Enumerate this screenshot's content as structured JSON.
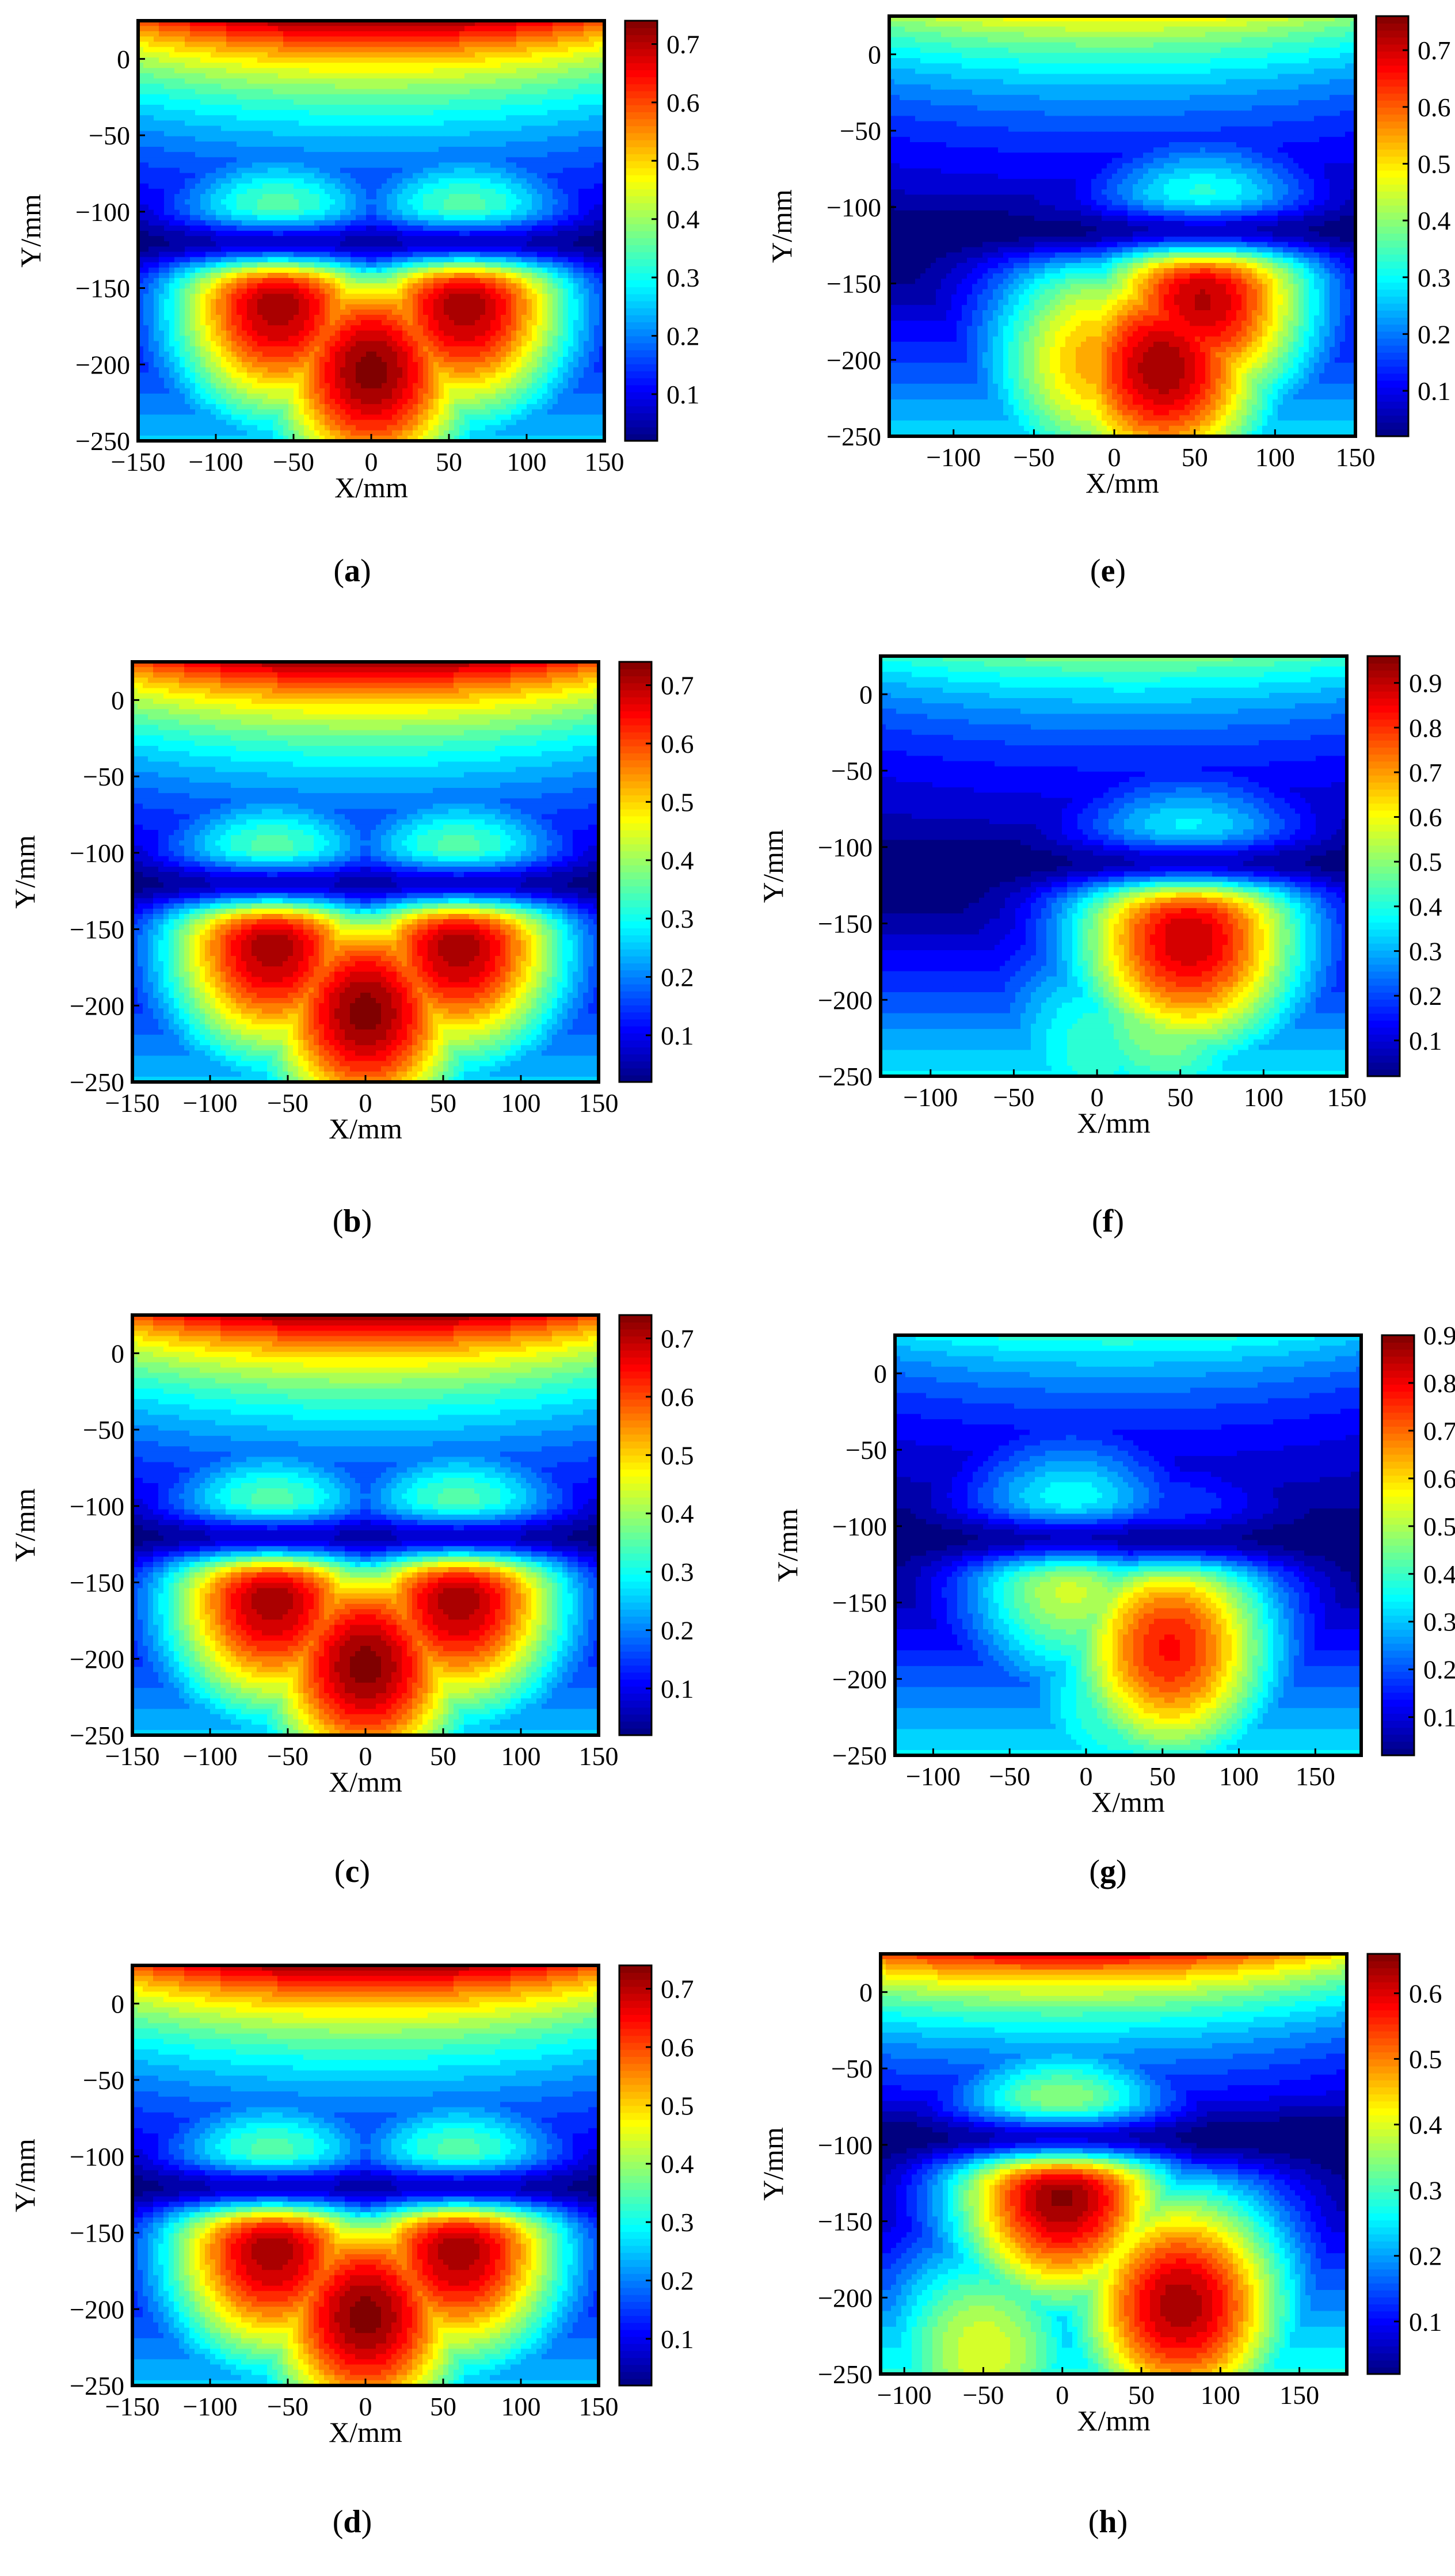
{
  "figure": {
    "panels": [
      {
        "letter": "a",
        "caption": "(a)",
        "xlabel": "X/mm",
        "ylabel": "Y/mm"
      },
      {
        "letter": "b",
        "caption": "(b)",
        "xlabel": "X/mm",
        "ylabel": "Y/mm"
      },
      {
        "letter": "c",
        "caption": "(c)",
        "xlabel": "X/mm",
        "ylabel": "Y/mm"
      },
      {
        "letter": "d",
        "caption": "(d)",
        "xlabel": "X/mm",
        "ylabel": "Y/mm"
      },
      {
        "letter": "e",
        "caption": "(e)",
        "xlabel": "X/mm",
        "ylabel": "Y/mm"
      },
      {
        "letter": "f",
        "caption": "(f)",
        "xlabel": "X/mm",
        "ylabel": "Y/mm"
      },
      {
        "letter": "g",
        "caption": "(g)",
        "xlabel": "X/mm",
        "ylabel": "Y/mm"
      },
      {
        "letter": "h",
        "caption": "(h)",
        "xlabel": "X/mm",
        "ylabel": "Y/mm"
      }
    ]
  },
  "colormap": "jet",
  "chart_data": [
    {
      "panel": "a",
      "type": "heatmap",
      "xlabel": "X/mm",
      "ylabel": "Y/mm",
      "xlim": [
        -150,
        150
      ],
      "ylim": [
        -250,
        25
      ],
      "xticks": [
        -150,
        -100,
        -50,
        0,
        50,
        100,
        150
      ],
      "xtick_labels": [
        "−150",
        "−100",
        "−50",
        "0",
        "50",
        "100",
        "150"
      ],
      "yticks": [
        0,
        -50,
        -100,
        -150,
        -200,
        -250
      ],
      "ytick_labels": [
        "0",
        "−50",
        "−100",
        "−150",
        "−200",
        "−250"
      ],
      "colorbar": {
        "min": 0.02,
        "max": 0.74,
        "ticks": [
          0.1,
          0.2,
          0.3,
          0.4,
          0.5,
          0.6,
          0.7
        ],
        "tick_labels": [
          "0.1",
          "0.2",
          "0.3",
          "0.4",
          "0.5",
          "0.6",
          "0.7"
        ]
      },
      "field": {
        "top_max": 0.74,
        "top_center_x": 0,
        "bottom_lobes": [
          {
            "x": 0,
            "y": -205,
            "value": 0.74
          },
          {
            "x": -60,
            "y": -160,
            "value": 0.72
          },
          {
            "x": 60,
            "y": -160,
            "value": 0.72
          }
        ],
        "min_band_y": -120
      }
    },
    {
      "panel": "b",
      "type": "heatmap",
      "xlabel": "X/mm",
      "ylabel": "Y/mm",
      "xlim": [
        -150,
        150
      ],
      "ylim": [
        -250,
        25
      ],
      "xticks": [
        -150,
        -100,
        -50,
        0,
        50,
        100,
        150
      ],
      "xtick_labels": [
        "−150",
        "−100",
        "−50",
        "0",
        "50",
        "100",
        "150"
      ],
      "yticks": [
        0,
        -50,
        -100,
        -150,
        -200,
        -250
      ],
      "ytick_labels": [
        "0",
        "−50",
        "−100",
        "−150",
        "−200",
        "−250"
      ],
      "colorbar": {
        "min": 0.02,
        "max": 0.74,
        "ticks": [
          0.1,
          0.2,
          0.3,
          0.4,
          0.5,
          0.6,
          0.7
        ],
        "tick_labels": [
          "0.1",
          "0.2",
          "0.3",
          "0.4",
          "0.5",
          "0.6",
          "0.7"
        ]
      },
      "field": {
        "top_max": 0.74,
        "top_center_x": 0,
        "bottom_lobes": [
          {
            "x": 0,
            "y": -205,
            "value": 0.74
          },
          {
            "x": -60,
            "y": -160,
            "value": 0.72
          },
          {
            "x": 60,
            "y": -160,
            "value": 0.72
          }
        ],
        "min_band_y": -120
      }
    },
    {
      "panel": "c",
      "type": "heatmap",
      "xlabel": "X/mm",
      "ylabel": "Y/mm",
      "xlim": [
        -150,
        150
      ],
      "ylim": [
        -250,
        25
      ],
      "xticks": [
        -150,
        -100,
        -50,
        0,
        50,
        100,
        150
      ],
      "xtick_labels": [
        "−150",
        "−100",
        "−50",
        "0",
        "50",
        "100",
        "150"
      ],
      "yticks": [
        0,
        -50,
        -100,
        -150,
        -200,
        -250
      ],
      "ytick_labels": [
        "0",
        "−50",
        "−100",
        "−150",
        "−200",
        "−250"
      ],
      "colorbar": {
        "min": 0.02,
        "max": 0.74,
        "ticks": [
          0.1,
          0.2,
          0.3,
          0.4,
          0.5,
          0.6,
          0.7
        ],
        "tick_labels": [
          "0.1",
          "0.2",
          "0.3",
          "0.4",
          "0.5",
          "0.6",
          "0.7"
        ]
      },
      "field": {
        "top_max": 0.74,
        "top_center_x": 0,
        "bottom_lobes": [
          {
            "x": 0,
            "y": -205,
            "value": 0.74
          },
          {
            "x": -60,
            "y": -160,
            "value": 0.72
          },
          {
            "x": 60,
            "y": -160,
            "value": 0.72
          }
        ],
        "min_band_y": -120
      }
    },
    {
      "panel": "d",
      "type": "heatmap",
      "xlabel": "X/mm",
      "ylabel": "Y/mm",
      "xlim": [
        -150,
        150
      ],
      "ylim": [
        -250,
        25
      ],
      "xticks": [
        -150,
        -100,
        -50,
        0,
        50,
        100,
        150
      ],
      "xtick_labels": [
        "−150",
        "−100",
        "−50",
        "0",
        "50",
        "100",
        "150"
      ],
      "yticks": [
        0,
        -50,
        -100,
        -150,
        -200,
        -250
      ],
      "ytick_labels": [
        "0",
        "−50",
        "−100",
        "−150",
        "−200",
        "−250"
      ],
      "colorbar": {
        "min": 0.02,
        "max": 0.74,
        "ticks": [
          0.1,
          0.2,
          0.3,
          0.4,
          0.5,
          0.6,
          0.7
        ],
        "tick_labels": [
          "0.1",
          "0.2",
          "0.3",
          "0.4",
          "0.5",
          "0.6",
          "0.7"
        ]
      },
      "field": {
        "top_max": 0.74,
        "top_center_x": 0,
        "bottom_lobes": [
          {
            "x": 0,
            "y": -205,
            "value": 0.74
          },
          {
            "x": -60,
            "y": -160,
            "value": 0.72
          },
          {
            "x": 60,
            "y": -160,
            "value": 0.72
          }
        ],
        "min_band_y": -120
      }
    },
    {
      "panel": "e",
      "type": "heatmap",
      "xlabel": "X/mm",
      "ylabel": "Y/mm",
      "xlim": [
        -140,
        150
      ],
      "ylim": [
        -250,
        25
      ],
      "xticks": [
        -100,
        -50,
        0,
        50,
        100,
        150
      ],
      "xtick_labels": [
        "−100",
        "−50",
        "0",
        "50",
        "100",
        "150"
      ],
      "yticks": [
        0,
        -50,
        -100,
        -150,
        -200,
        -250
      ],
      "ytick_labels": [
        "0",
        "−50",
        "−100",
        "−150",
        "−200",
        "−250"
      ],
      "colorbar": {
        "min": 0.02,
        "max": 0.76,
        "ticks": [
          0.1,
          0.2,
          0.3,
          0.4,
          0.5,
          0.6,
          0.7
        ],
        "tick_labels": [
          "0.1",
          "0.2",
          "0.3",
          "0.4",
          "0.5",
          "0.6",
          "0.7"
        ]
      },
      "field": {
        "top_max": 0.5,
        "top_center_x": 0,
        "bottom_lobes": [
          {
            "x": 30,
            "y": -205,
            "value": 0.74
          },
          {
            "x": 55,
            "y": -160,
            "value": 0.72
          },
          {
            "x": -10,
            "y": -200,
            "value": 0.55
          }
        ],
        "min_band_y": -115
      }
    },
    {
      "panel": "f",
      "type": "heatmap",
      "xlabel": "X/mm",
      "ylabel": "Y/mm",
      "xlim": [
        -130,
        150
      ],
      "ylim": [
        -250,
        25
      ],
      "xticks": [
        -100,
        -50,
        0,
        50,
        100,
        150
      ],
      "xtick_labels": [
        "−100",
        "−50",
        "0",
        "50",
        "100",
        "150"
      ],
      "yticks": [
        0,
        -50,
        -100,
        -150,
        -200,
        -250
      ],
      "ytick_labels": [
        "0",
        "−50",
        "−100",
        "−150",
        "−200",
        "−250"
      ],
      "colorbar": {
        "min": 0.02,
        "max": 0.96,
        "ticks": [
          0.1,
          0.2,
          0.3,
          0.4,
          0.5,
          0.6,
          0.7,
          0.8,
          0.9
        ],
        "tick_labels": [
          "0.1",
          "0.2",
          "0.3",
          "0.4",
          "0.5",
          "0.6",
          "0.7",
          "0.8",
          "0.9"
        ]
      },
      "field": {
        "top_max": 0.5,
        "top_center_x": 20,
        "bottom_lobes": [
          {
            "x": 40,
            "y": -210,
            "value": 0.52
          },
          {
            "x": 55,
            "y": -160,
            "value": 0.9
          },
          {
            "x": 0,
            "y": -230,
            "value": 0.42
          }
        ],
        "min_band_y": -110
      }
    },
    {
      "panel": "g",
      "type": "heatmap",
      "xlabel": "X/mm",
      "ylabel": "Y/mm",
      "xlim": [
        -125,
        180
      ],
      "ylim": [
        -250,
        25
      ],
      "xticks": [
        -100,
        -50,
        0,
        50,
        100,
        150
      ],
      "xtick_labels": [
        "−100",
        "−50",
        "0",
        "50",
        "100",
        "150"
      ],
      "yticks": [
        0,
        -50,
        -100,
        -150,
        -200,
        -250
      ],
      "ytick_labels": [
        "0",
        "−50",
        "−100",
        "−150",
        "−200",
        "−250"
      ],
      "colorbar": {
        "min": 0.02,
        "max": 0.9,
        "ticks": [
          0.1,
          0.2,
          0.3,
          0.4,
          0.5,
          0.6,
          0.7,
          0.8,
          0.9
        ],
        "tick_labels": [
          "0.1",
          "0.2",
          "0.3",
          "0.4",
          "0.5",
          "0.6",
          "0.7",
          "0.8",
          "0.9"
        ]
      },
      "field": {
        "top_max": 0.4,
        "top_center_x": 20,
        "bottom_lobes": [
          {
            "x": 55,
            "y": -180,
            "value": 0.78
          },
          {
            "x": 20,
            "y": -215,
            "value": 0.42
          },
          {
            "x": -10,
            "y": -130,
            "value": 0.55
          }
        ],
        "min_band_y": -108
      }
    },
    {
      "panel": "h",
      "type": "heatmap",
      "xlabel": "X/mm",
      "ylabel": "Y/mm",
      "xlim": [
        -115,
        180
      ],
      "ylim": [
        -250,
        25
      ],
      "xticks": [
        -100,
        -50,
        0,
        50,
        100,
        150
      ],
      "xtick_labels": [
        "−100",
        "−50",
        "0",
        "50",
        "100",
        "150"
      ],
      "yticks": [
        0,
        -50,
        -100,
        -150,
        -200,
        -250
      ],
      "ytick_labels": [
        "0",
        "−50",
        "−100",
        "−150",
        "−200",
        "−250"
      ],
      "colorbar": {
        "min": 0.02,
        "max": 0.66,
        "ticks": [
          0.1,
          0.2,
          0.3,
          0.4,
          0.5,
          0.6
        ],
        "tick_labels": [
          "0.1",
          "0.2",
          "0.3",
          "0.4",
          "0.5",
          "0.6"
        ]
      },
      "field": {
        "top_max": 0.6,
        "top_center_x": 0,
        "bottom_lobes": [
          {
            "x": 75,
            "y": -205,
            "value": 0.64
          },
          {
            "x": 0,
            "y": -130,
            "value": 0.66
          },
          {
            "x": -50,
            "y": -235,
            "value": 0.4
          }
        ],
        "min_band_y": -95
      }
    }
  ]
}
